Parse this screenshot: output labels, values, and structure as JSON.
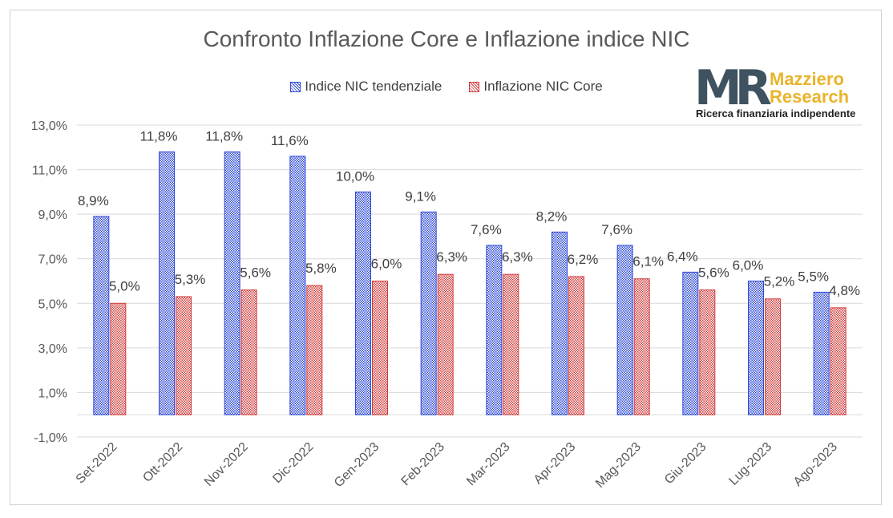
{
  "chart_data": {
    "type": "bar",
    "title": "Confronto Inflazione Core e Inflazione indice NIC",
    "categories": [
      "Set-2022",
      "Ott-2022",
      "Nov-2022",
      "Dic-2022",
      "Gen-2023",
      "Feb-2023",
      "Mar-2023",
      "Apr-2023",
      "Mag-2023",
      "Giu-2023",
      "Lug-2023",
      "Ago-2023"
    ],
    "series": [
      {
        "name": "Indice NIC tendenziale",
        "color": "#2e48d6",
        "values": [
          8.9,
          11.8,
          11.8,
          11.6,
          10.0,
          9.1,
          7.6,
          8.2,
          7.6,
          6.4,
          6.0,
          5.5
        ],
        "labels": [
          "8,9%",
          "11,8%",
          "11,8%",
          "11,6%",
          "10,0%",
          "9,1%",
          "7,6%",
          "8,2%",
          "7,6%",
          "6,4%",
          "6,0%",
          "5,5%"
        ]
      },
      {
        "name": "Inflazione NIC Core",
        "color": "#d13b3b",
        "values": [
          5.0,
          5.3,
          5.6,
          5.8,
          6.0,
          6.3,
          6.3,
          6.2,
          6.1,
          5.6,
          5.2,
          4.8
        ],
        "labels": [
          "5,0%",
          "5,3%",
          "5,6%",
          "5,8%",
          "6,0%",
          "6,3%",
          "6,3%",
          "6,2%",
          "6,1%",
          "5,6%",
          "5,2%",
          "4,8%"
        ]
      }
    ],
    "yticks": [
      -1,
      1,
      3,
      5,
      7,
      9,
      11,
      13
    ],
    "ytick_labels": [
      "-1,0%",
      "1,0%",
      "3,0%",
      "5,0%",
      "7,0%",
      "9,0%",
      "11,0%",
      "13,0%"
    ],
    "ylim": [
      -1,
      13
    ],
    "grid": true,
    "legend_position": "top"
  },
  "logo": {
    "mark": "MR",
    "name": "Mazziero\nResearch",
    "tagline": "Ricerca finanziaria indipendente"
  }
}
